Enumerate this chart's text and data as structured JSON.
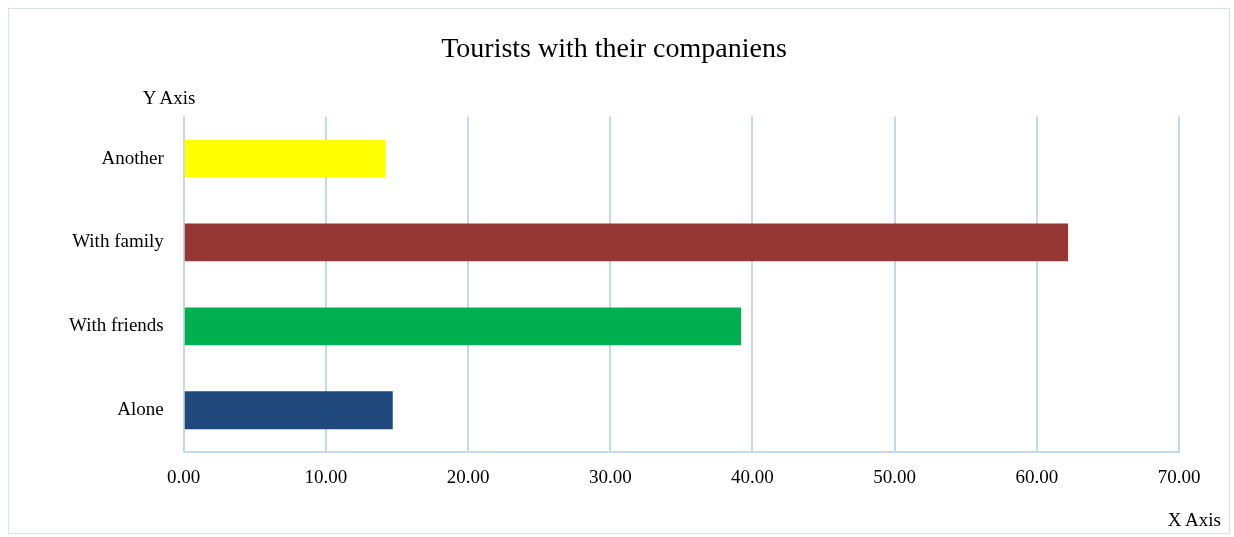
{
  "chart_data": {
    "type": "bar",
    "orientation": "horizontal",
    "title": "Tourists with their companiens",
    "xlabel": "X Axis",
    "ylabel": "Y Axis",
    "categories": [
      "Another",
      "With family",
      "With friends",
      "Alone"
    ],
    "values": [
      14.2,
      62.2,
      39.2,
      14.7
    ],
    "colors": [
      "#ffff00",
      "#953735",
      "#00b050",
      "#1f497d"
    ],
    "xlim": [
      0,
      70
    ],
    "xticks": [
      {
        "value": 0,
        "label": "0.00"
      },
      {
        "value": 10,
        "label": "10.00"
      },
      {
        "value": 20,
        "label": "20.00"
      },
      {
        "value": 30,
        "label": "30.00"
      },
      {
        "value": 40,
        "label": "40.00"
      },
      {
        "value": 50,
        "label": "50.00"
      },
      {
        "value": 60,
        "label": "60.00"
      },
      {
        "value": 70,
        "label": "70.00"
      }
    ],
    "grid": "x"
  }
}
